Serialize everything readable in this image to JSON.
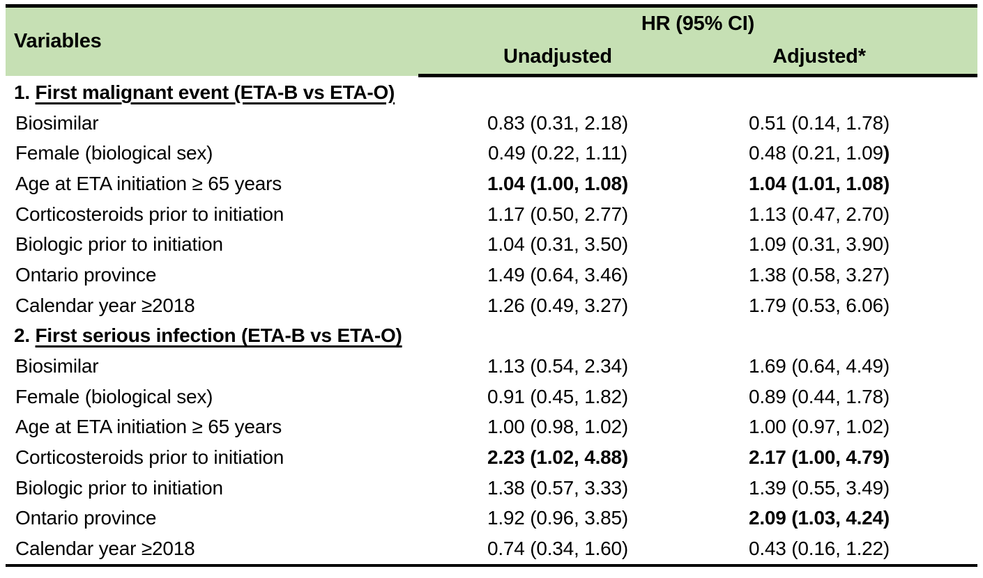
{
  "table": {
    "colors": {
      "header_bg": "#C6E0B4",
      "border": "#000000",
      "text": "#000000",
      "page_bg": "#FFFFFF"
    },
    "header": {
      "variables_label": "Variables",
      "hr_group_label": "HR (95% CI)",
      "unadjusted_label": "Unadjusted",
      "adjusted_label": "Adjusted*"
    },
    "sections": [
      {
        "number": "1.",
        "title": "First malignant event (ETA-B vs ETA-O)",
        "rows": [
          {
            "variable": "Biosimilar",
            "unadjusted": {
              "text": "0.83 (0.31, 2.18)",
              "bold": false
            },
            "adjusted": {
              "text": "0.51 (0.14, 1.78)",
              "bold": false
            }
          },
          {
            "variable": "Female (biological sex)",
            "unadjusted": {
              "text": "0.49 (0.22, 1.11)",
              "bold": false
            },
            "adjusted": {
              "text": "0.48 (0.21, 1.09",
              "bold": false,
              "bold_suffix": ")"
            }
          },
          {
            "variable": "Age at ETA initiation ≥ 65 years",
            "unadjusted": {
              "text": "1.04 (1.00, 1.08)",
              "bold": true
            },
            "adjusted": {
              "text": "1.04 (1.01, 1.08)",
              "bold": true
            }
          },
          {
            "variable": "Corticosteroids prior to initiation",
            "unadjusted": {
              "text": "1.17 (0.50, 2.77)",
              "bold": false
            },
            "adjusted": {
              "text": "1.13 (0.47, 2.70)",
              "bold": false
            }
          },
          {
            "variable": "Biologic prior to initiation",
            "unadjusted": {
              "text": "1.04 (0.31, 3.50)",
              "bold": false
            },
            "adjusted": {
              "text": "1.09 (0.31, 3.90)",
              "bold": false
            }
          },
          {
            "variable": "Ontario province",
            "unadjusted": {
              "text": "1.49 (0.64, 3.46)",
              "bold": false
            },
            "adjusted": {
              "text": "1.38 (0.58, 3.27)",
              "bold": false
            }
          },
          {
            "variable": "Calendar year ≥2018",
            "unadjusted": {
              "text": "1.26 (0.49, 3.27)",
              "bold": false
            },
            "adjusted": {
              "text": "1.79 (0.53, 6.06)",
              "bold": false
            }
          }
        ]
      },
      {
        "number": "2.",
        "title": "First serious infection (ETA-B vs ETA-O)",
        "rows": [
          {
            "variable": "Biosimilar",
            "unadjusted": {
              "text": "1.13 (0.54, 2.34)",
              "bold": false
            },
            "adjusted": {
              "text": "1.69 (0.64, 4.49)",
              "bold": false
            }
          },
          {
            "variable": "Female (biological sex)",
            "unadjusted": {
              "text": "0.91 (0.45, 1.82)",
              "bold": false
            },
            "adjusted": {
              "text": "0.89 (0.44, 1.78)",
              "bold": false
            }
          },
          {
            "variable": "Age at ETA initiation ≥ 65 years",
            "unadjusted": {
              "text": "1.00 (0.98, 1.02)",
              "bold": false
            },
            "adjusted": {
              "text": "1.00 (0.97, 1.02)",
              "bold": false
            }
          },
          {
            "variable": "Corticosteroids prior to initiation",
            "unadjusted": {
              "text": "2.23 (1.02, 4.88)",
              "bold": true
            },
            "adjusted": {
              "text": "2.17 (1.00, 4.79)",
              "bold": true
            }
          },
          {
            "variable": "Biologic prior to initiation",
            "unadjusted": {
              "text": "1.38 (0.57, 3.33)",
              "bold": false
            },
            "adjusted": {
              "text": "1.39 (0.55, 3.49)",
              "bold": false
            }
          },
          {
            "variable": "Ontario province",
            "unadjusted": {
              "text": "1.92 (0.96, 3.85)",
              "bold": false
            },
            "adjusted": {
              "text": "2.09 (1.03, 4.24)",
              "bold": true
            }
          },
          {
            "variable": "Calendar year ≥2018",
            "unadjusted": {
              "text": "0.74 (0.34, 1.60)",
              "bold": false
            },
            "adjusted": {
              "text": "0.43 (0.16, 1.22)",
              "bold": false
            }
          }
        ]
      }
    ]
  }
}
